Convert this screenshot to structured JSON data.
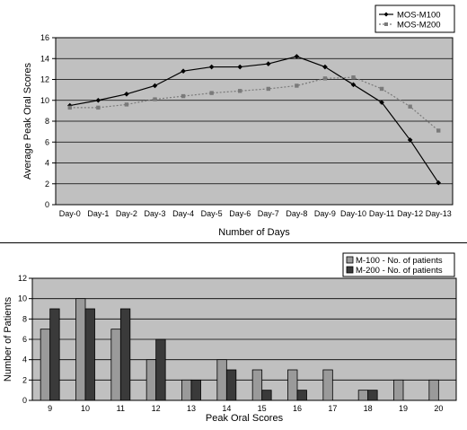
{
  "chart_data": [
    {
      "type": "line",
      "xlabel": "Number of Days",
      "ylabel": "Average Peak Oral Scores",
      "categories": [
        "Day-0",
        "Day-1",
        "Day-2",
        "Day-3",
        "Day-4",
        "Day-5",
        "Day-6",
        "Day-7",
        "Day-8",
        "Day-9",
        "Day-10",
        "Day-11",
        "Day-12",
        "Day-13"
      ],
      "ylim": [
        0,
        16
      ],
      "yticks": [
        "0",
        "2",
        "4",
        "6",
        "8",
        "10",
        "12",
        "14",
        "16"
      ],
      "grid": true,
      "legend_position": "top-right",
      "colors": {
        "plot_bg": "#c0c0c0",
        "grid": "#000000"
      },
      "series": [
        {
          "name": "MOS-M100",
          "color": "#000000",
          "marker": "diamond",
          "dash": "solid",
          "values": [
            9.5,
            10.0,
            10.6,
            11.4,
            12.8,
            13.2,
            13.2,
            13.5,
            14.2,
            13.2,
            11.5,
            9.8,
            6.2,
            2.1
          ]
        },
        {
          "name": "MOS-M200",
          "color": "#7a7a7a",
          "marker": "square",
          "dash": "dotted",
          "values": [
            9.3,
            9.3,
            9.6,
            10.1,
            10.4,
            10.7,
            10.9,
            11.1,
            11.4,
            12.1,
            12.2,
            11.1,
            9.4,
            7.1
          ]
        }
      ]
    },
    {
      "type": "bar",
      "xlabel": "Peak Oral Scores",
      "ylabel": "Number of Patients",
      "categories": [
        "9",
        "10",
        "11",
        "12",
        "13",
        "14",
        "15",
        "16",
        "17",
        "18",
        "19",
        "20"
      ],
      "ylim": [
        0,
        12
      ],
      "yticks": [
        "0",
        "2",
        "4",
        "6",
        "8",
        "10",
        "12"
      ],
      "grid": true,
      "legend_position": "top-right",
      "colors": {
        "plot_bg": "#c0c0c0",
        "grid": "#000000"
      },
      "series": [
        {
          "name": "M-100 - No. of patients",
          "color": "#9a9a9a",
          "values": [
            7,
            10,
            7,
            4,
            2,
            4,
            3,
            3,
            3,
            1,
            2,
            2
          ]
        },
        {
          "name": "M-200 - No. of patients",
          "color": "#3a3a3a",
          "values": [
            9,
            9,
            9,
            6,
            2,
            3,
            1,
            1,
            0,
            1,
            0,
            0
          ]
        }
      ]
    }
  ]
}
